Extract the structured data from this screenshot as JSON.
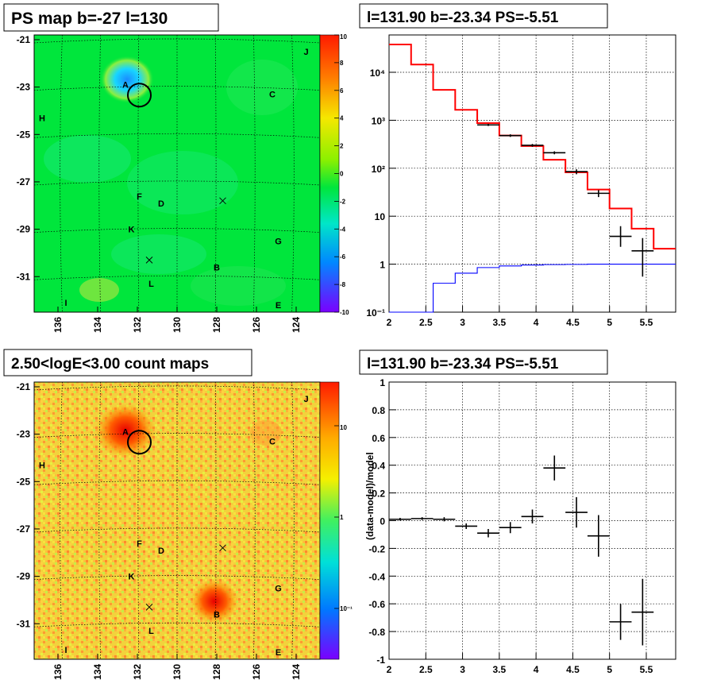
{
  "panels": {
    "ps_map": {
      "title": "PS map b=-27 l=130"
    },
    "spectrum": {
      "title": "l=131.90 b=-23.34 PS=-5.51"
    },
    "count_map": {
      "title": "2.50<logE<3.00 count maps"
    },
    "residual": {
      "title": "l=131.90 b=-23.34 PS=-5.51"
    }
  },
  "colors": {
    "map_background": "#00e63c",
    "model": "#ff0000",
    "background_model": "#0000ff",
    "data": "#000000"
  },
  "chart_data": [
    {
      "type": "heatmap",
      "title": "PS map b=-27 l=130",
      "x_ticks": [
        "136",
        "134",
        "132",
        "130",
        "128",
        "126",
        "124"
      ],
      "y_ticks": [
        "-21",
        "-23",
        "-25",
        "-27",
        "-29",
        "-31"
      ],
      "xlim": [
        137.2,
        122.8
      ],
      "ylim": [
        -32.5,
        -20.8
      ],
      "colorbar": {
        "ticks": [
          "10",
          "8",
          "6",
          "4",
          "2",
          "0",
          "-2",
          "-4",
          "-6",
          "-8",
          "-10"
        ],
        "range": [
          -10,
          10
        ]
      },
      "sources": [
        {
          "label": "A",
          "l": 132.6,
          "b": -22.9
        },
        {
          "label": "C",
          "l": 125.2,
          "b": -23.3
        },
        {
          "label": "H",
          "l": 136.8,
          "b": -24.3
        },
        {
          "label": "J",
          "l": 123.5,
          "b": -21.5
        },
        {
          "label": "F",
          "l": 131.9,
          "b": -27.6
        },
        {
          "label": "D",
          "l": 130.8,
          "b": -27.9
        },
        {
          "label": "K",
          "l": 132.3,
          "b": -29.0
        },
        {
          "label": "G",
          "l": 124.9,
          "b": -29.5
        },
        {
          "label": "B",
          "l": 128.0,
          "b": -30.6
        },
        {
          "label": "L",
          "l": 131.3,
          "b": -31.3
        },
        {
          "label": "I",
          "l": 135.6,
          "b": -32.1
        },
        {
          "label": "E",
          "l": 124.9,
          "b": -32.2
        }
      ],
      "crosses": [
        {
          "l": 127.7,
          "b": -27.8
        },
        {
          "l": 131.4,
          "b": -30.3
        }
      ],
      "circle": {
        "l": 131.9,
        "b": -23.34
      }
    },
    {
      "type": "line",
      "title": "l=131.90 b=-23.34 PS=-5.51",
      "xlim": [
        2.0,
        5.9
      ],
      "ylim": [
        0.1,
        60000
      ],
      "yscale": "log",
      "x_ticks": [
        "2",
        "2.5",
        "3",
        "3.5",
        "4",
        "4.5",
        "5",
        "5.5"
      ],
      "y_ticks": [
        "10⁻¹",
        "1",
        "10",
        "10²",
        "10³",
        "10⁴"
      ],
      "grid": true,
      "series": [
        {
          "name": "model",
          "color": "#ff0000",
          "style": "step",
          "edges": [
            2.0,
            2.3,
            2.6,
            2.9,
            3.2,
            3.5,
            3.8,
            4.1,
            4.4,
            4.7,
            5.0,
            5.3,
            5.6,
            5.9
          ],
          "values": [
            38000,
            14500,
            4300,
            1650,
            870,
            480,
            290,
            150,
            82,
            36,
            14.5,
            5.5,
            2.1
          ]
        },
        {
          "name": "background",
          "color": "#0000ff",
          "style": "step",
          "edges": [
            2.0,
            2.3,
            2.6,
            2.9,
            3.2,
            3.5,
            3.8,
            4.1,
            4.4,
            4.7,
            5.0,
            5.3,
            5.6,
            5.9
          ],
          "values": [
            0.01,
            0.1,
            0.4,
            0.65,
            0.85,
            0.92,
            0.96,
            0.98,
            0.99,
            1.0,
            1.0,
            1.0,
            1.0
          ]
        },
        {
          "name": "data",
          "color": "#000000",
          "style": "points",
          "x": [
            3.35,
            3.65,
            3.95,
            4.25,
            4.55,
            4.85,
            5.15,
            5.45
          ],
          "y": [
            800,
            480,
            300,
            210,
            85,
            30,
            3.8,
            1.9
          ],
          "xerr": 0.15,
          "ylo": [
            760,
            450,
            280,
            195,
            75,
            25,
            2.3,
            0.55
          ],
          "yhi": [
            840,
            510,
            320,
            225,
            95,
            35,
            6.2,
            3.5
          ]
        }
      ]
    },
    {
      "type": "heatmap",
      "title": "2.50<logE<3.00 count maps",
      "x_ticks": [
        "136",
        "134",
        "132",
        "130",
        "128",
        "126",
        "124"
      ],
      "y_ticks": [
        "-21",
        "-23",
        "-25",
        "-27",
        "-29",
        "-31"
      ],
      "xlim": [
        137.2,
        122.8
      ],
      "ylim": [
        -32.5,
        -20.8
      ],
      "colorbar": {
        "ticks": [
          "10",
          "1",
          "10⁻¹"
        ],
        "scale": "log"
      },
      "sources": [
        {
          "label": "A",
          "l": 132.6,
          "b": -22.9
        },
        {
          "label": "C",
          "l": 125.2,
          "b": -23.3
        },
        {
          "label": "H",
          "l": 136.8,
          "b": -24.3
        },
        {
          "label": "J",
          "l": 123.5,
          "b": -21.5
        },
        {
          "label": "F",
          "l": 131.9,
          "b": -27.6
        },
        {
          "label": "D",
          "l": 130.8,
          "b": -27.9
        },
        {
          "label": "K",
          "l": 132.3,
          "b": -29.0
        },
        {
          "label": "G",
          "l": 124.9,
          "b": -29.5
        },
        {
          "label": "B",
          "l": 128.0,
          "b": -30.6
        },
        {
          "label": "L",
          "l": 131.3,
          "b": -31.3
        },
        {
          "label": "I",
          "l": 135.6,
          "b": -32.1
        },
        {
          "label": "E",
          "l": 124.9,
          "b": -32.2
        }
      ],
      "crosses": [
        {
          "l": 127.7,
          "b": -27.8
        },
        {
          "l": 131.4,
          "b": -30.3
        }
      ],
      "circle": {
        "l": 131.9,
        "b": -23.34
      }
    },
    {
      "type": "scatter",
      "title": "l=131.90 b=-23.34 PS=-5.51",
      "ylabel": "(data-model)/model",
      "xlim": [
        2.0,
        5.9
      ],
      "ylim": [
        -1,
        1
      ],
      "x_ticks": [
        "2",
        "2.5",
        "3",
        "3.5",
        "4",
        "4.5",
        "5",
        "5.5"
      ],
      "y_ticks": [
        "-1",
        "-0.8",
        "-0.6",
        "-0.4",
        "-0.2",
        "0",
        "0.2",
        "0.4",
        "0.6",
        "0.8",
        "1"
      ],
      "grid": true,
      "series": [
        {
          "name": "residual",
          "color": "#000000",
          "x": [
            2.15,
            2.45,
            2.75,
            3.05,
            3.35,
            3.65,
            3.95,
            4.25,
            4.55,
            4.85,
            5.15,
            5.45
          ],
          "y": [
            0.01,
            0.015,
            0.01,
            -0.04,
            -0.09,
            -0.05,
            0.03,
            0.38,
            0.06,
            -0.11,
            -0.73,
            -0.66
          ],
          "xerr": 0.15,
          "yerr": [
            0.01,
            0.01,
            0.015,
            0.02,
            0.03,
            0.04,
            0.05,
            0.09,
            0.11,
            0.15,
            0.13,
            0.24
          ]
        }
      ]
    }
  ]
}
